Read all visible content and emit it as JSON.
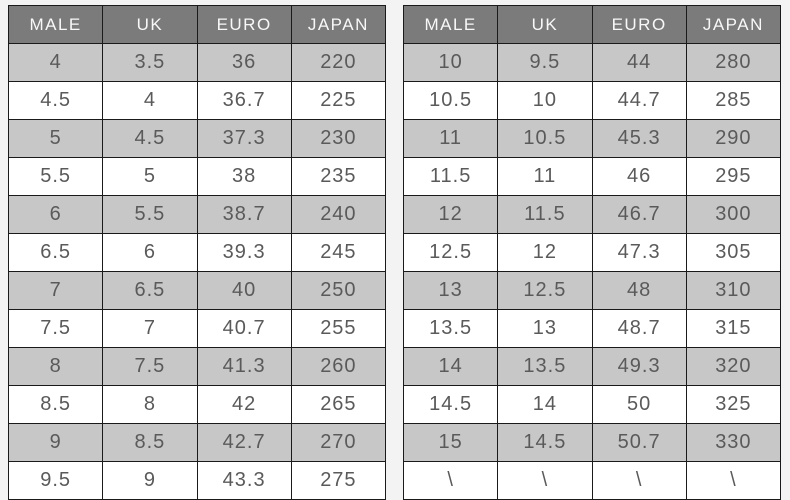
{
  "colors": {
    "page_background": "#f3f3f3",
    "header_background": "#7b7b7b",
    "header_text": "#f8f8f8",
    "row_gray": "#c7c7c7",
    "row_white": "#ffffff",
    "cell_text": "#5a5a5a",
    "border": "#1a1a1a"
  },
  "chart_data": [
    {
      "type": "table",
      "columns": [
        "MALE",
        "UK",
        "EURO",
        "JAPAN"
      ],
      "rows": [
        [
          "4",
          "3.5",
          "36",
          "220"
        ],
        [
          "4.5",
          "4",
          "36.7",
          "225"
        ],
        [
          "5",
          "4.5",
          "37.3",
          "230"
        ],
        [
          "5.5",
          "5",
          "38",
          "235"
        ],
        [
          "6",
          "5.5",
          "38.7",
          "240"
        ],
        [
          "6.5",
          "6",
          "39.3",
          "245"
        ],
        [
          "7",
          "6.5",
          "40",
          "250"
        ],
        [
          "7.5",
          "7",
          "40.7",
          "255"
        ],
        [
          "8",
          "7.5",
          "41.3",
          "260"
        ],
        [
          "8.5",
          "8",
          "42",
          "265"
        ],
        [
          "9",
          "8.5",
          "42.7",
          "270"
        ],
        [
          "9.5",
          "9",
          "43.3",
          "275"
        ]
      ]
    },
    {
      "type": "table",
      "columns": [
        "MALE",
        "UK",
        "EURO",
        "JAPAN"
      ],
      "rows": [
        [
          "10",
          "9.5",
          "44",
          "280"
        ],
        [
          "10.5",
          "10",
          "44.7",
          "285"
        ],
        [
          "11",
          "10.5",
          "45.3",
          "290"
        ],
        [
          "11.5",
          "11",
          "46",
          "295"
        ],
        [
          "12",
          "11.5",
          "46.7",
          "300"
        ],
        [
          "12.5",
          "12",
          "47.3",
          "305"
        ],
        [
          "13",
          "12.5",
          "48",
          "310"
        ],
        [
          "13.5",
          "13",
          "48.7",
          "315"
        ],
        [
          "14",
          "13.5",
          "49.3",
          "320"
        ],
        [
          "14.5",
          "14",
          "50",
          "325"
        ],
        [
          "15",
          "14.5",
          "50.7",
          "330"
        ],
        [
          "\\",
          "\\",
          "\\",
          "\\"
        ]
      ]
    }
  ]
}
